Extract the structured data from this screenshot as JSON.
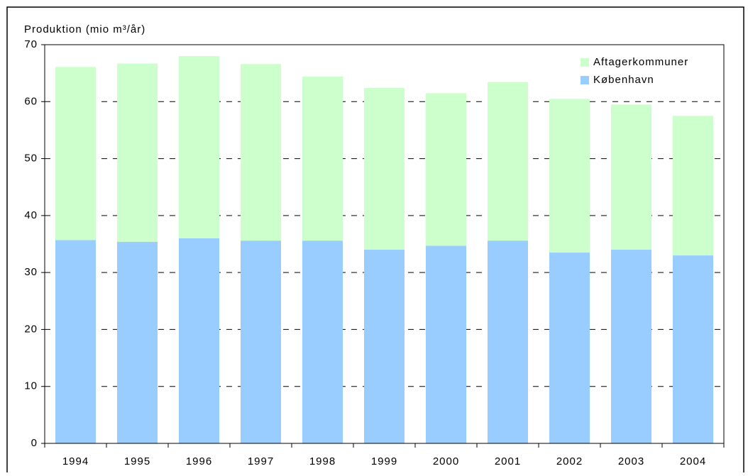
{
  "chart_data": {
    "type": "stacked_bar",
    "y_label": "Produktion (mio m³/år)",
    "categories": [
      "1994",
      "1995",
      "1996",
      "1997",
      "1998",
      "1999",
      "2000",
      "2001",
      "2002",
      "2003",
      "2004"
    ],
    "series": [
      {
        "name": "København",
        "color": "#99ccff",
        "values": [
          35.7,
          35.4,
          36.0,
          35.6,
          35.6,
          34.0,
          34.7,
          35.6,
          33.5,
          34.0,
          33.0
        ]
      },
      {
        "name": "Aftagerkommuner",
        "color": "#ccffcc",
        "values": [
          30.4,
          31.3,
          32.0,
          31.0,
          28.8,
          28.4,
          26.8,
          27.8,
          27.0,
          25.5,
          24.5
        ]
      }
    ],
    "ylim": [
      0,
      70
    ],
    "yticks": [
      0,
      10,
      20,
      30,
      40,
      50,
      60,
      70
    ],
    "grid": true,
    "legend": "top-right"
  }
}
